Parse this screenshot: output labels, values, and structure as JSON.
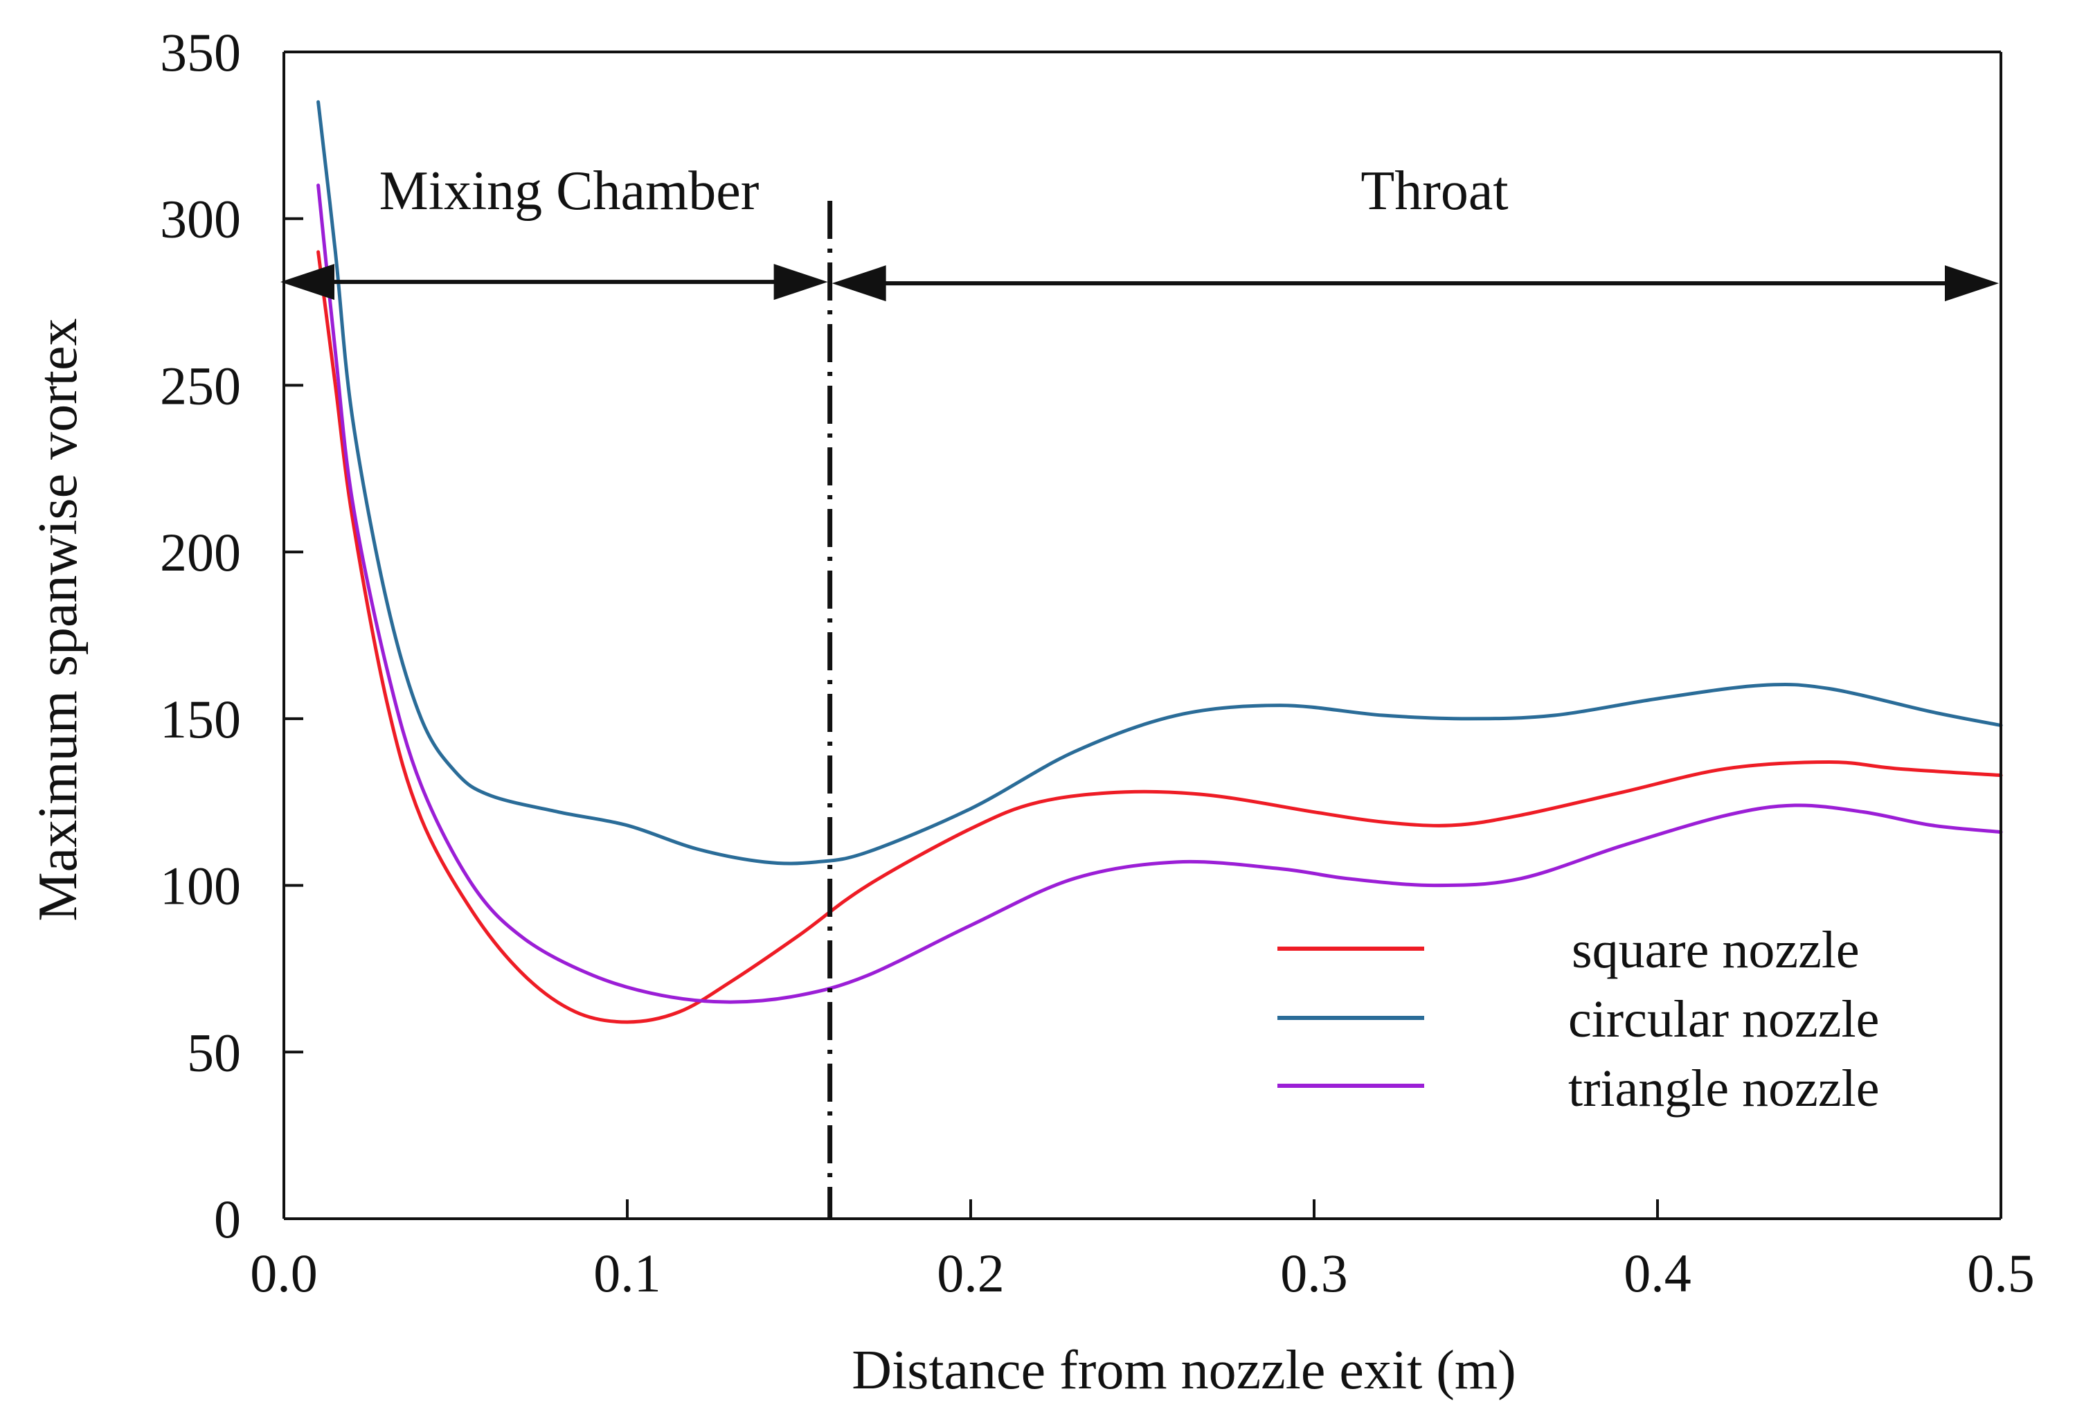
{
  "chart_data": {
    "type": "line",
    "title": "",
    "xlabel": "Distance from nozzle exit (m)",
    "ylabel": "Maximum spanwise vortex",
    "xlim": [
      0.0,
      0.5
    ],
    "ylim": [
      0,
      350
    ],
    "x_ticks": [
      0.0,
      0.1,
      0.2,
      0.3,
      0.4,
      0.5
    ],
    "x_tick_labels": [
      "0.0",
      "0.1",
      "0.2",
      "0.3",
      "0.4",
      "0.5"
    ],
    "y_ticks": [
      0,
      50,
      100,
      150,
      200,
      250,
      300,
      350
    ],
    "y_tick_labels": [
      "0",
      "50",
      "100",
      "150",
      "200",
      "250",
      "300",
      "350"
    ],
    "grid": false,
    "legend_position": "bottom-right",
    "series": [
      {
        "name": "square nozzle",
        "color": "#ee1c25",
        "points": [
          [
            0.01,
            290
          ],
          [
            0.015,
            250
          ],
          [
            0.02,
            210
          ],
          [
            0.03,
            155
          ],
          [
            0.04,
            120
          ],
          [
            0.055,
            92
          ],
          [
            0.07,
            73
          ],
          [
            0.085,
            62
          ],
          [
            0.1,
            59
          ],
          [
            0.115,
            62
          ],
          [
            0.13,
            71
          ],
          [
            0.15,
            85
          ],
          [
            0.17,
            100
          ],
          [
            0.2,
            117
          ],
          [
            0.22,
            125
          ],
          [
            0.245,
            128
          ],
          [
            0.27,
            127
          ],
          [
            0.3,
            122
          ],
          [
            0.32,
            119
          ],
          [
            0.34,
            118
          ],
          [
            0.36,
            121
          ],
          [
            0.39,
            128
          ],
          [
            0.42,
            135
          ],
          [
            0.45,
            137
          ],
          [
            0.47,
            135
          ],
          [
            0.5,
            133
          ]
        ]
      },
      {
        "name": "circular nozzle",
        "color": "#2a6c98",
        "points": [
          [
            0.01,
            335
          ],
          [
            0.015,
            290
          ],
          [
            0.02,
            240
          ],
          [
            0.03,
            185
          ],
          [
            0.04,
            150
          ],
          [
            0.05,
            134
          ],
          [
            0.06,
            127
          ],
          [
            0.08,
            122
          ],
          [
            0.1,
            118
          ],
          [
            0.12,
            111
          ],
          [
            0.14,
            107
          ],
          [
            0.155,
            107
          ],
          [
            0.17,
            110
          ],
          [
            0.2,
            123
          ],
          [
            0.23,
            140
          ],
          [
            0.26,
            151
          ],
          [
            0.29,
            154
          ],
          [
            0.32,
            151
          ],
          [
            0.345,
            150
          ],
          [
            0.37,
            151
          ],
          [
            0.4,
            156
          ],
          [
            0.43,
            160
          ],
          [
            0.45,
            159
          ],
          [
            0.48,
            152
          ],
          [
            0.5,
            148
          ]
        ]
      },
      {
        "name": "triangle nozzle",
        "color": "#9b1ed6",
        "points": [
          [
            0.01,
            310
          ],
          [
            0.015,
            260
          ],
          [
            0.02,
            215
          ],
          [
            0.03,
            165
          ],
          [
            0.04,
            130
          ],
          [
            0.055,
            100
          ],
          [
            0.07,
            84
          ],
          [
            0.09,
            73
          ],
          [
            0.11,
            67
          ],
          [
            0.13,
            65
          ],
          [
            0.15,
            67
          ],
          [
            0.17,
            73
          ],
          [
            0.2,
            88
          ],
          [
            0.23,
            102
          ],
          [
            0.26,
            107
          ],
          [
            0.29,
            105
          ],
          [
            0.31,
            102
          ],
          [
            0.335,
            100
          ],
          [
            0.36,
            102
          ],
          [
            0.39,
            112
          ],
          [
            0.42,
            121
          ],
          [
            0.44,
            124
          ],
          [
            0.46,
            122
          ],
          [
            0.48,
            118
          ],
          [
            0.5,
            116
          ]
        ]
      }
    ],
    "annotations": {
      "boundary_x": 0.159,
      "arrow_y": 281,
      "regions": [
        {
          "label": "Mixing Chamber",
          "x_start": 0.0,
          "x_end": 0.159
        },
        {
          "label": "Throat",
          "x_start": 0.159,
          "x_end": 0.5
        }
      ]
    }
  },
  "colors": {
    "axis": "#111111",
    "square": "#ee1c25",
    "circular": "#2a6c98",
    "triangle": "#9b1ed6"
  }
}
